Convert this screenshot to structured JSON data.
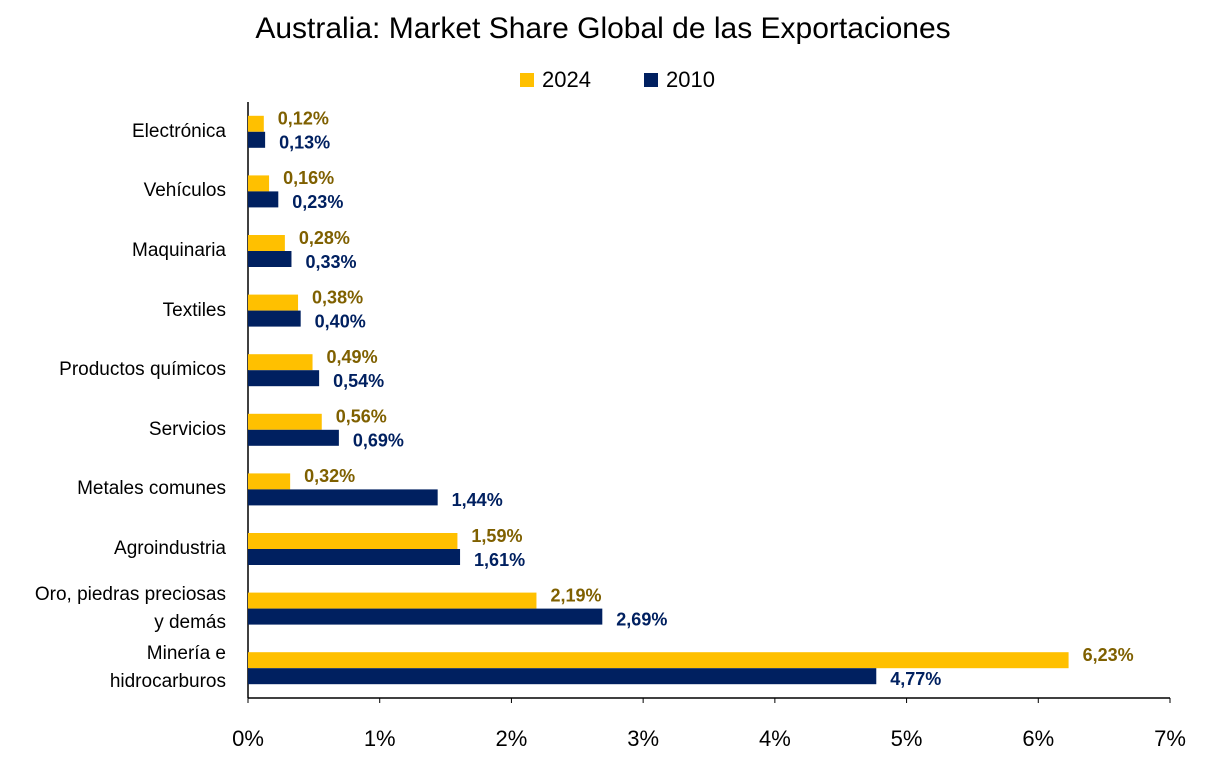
{
  "chart_data": {
    "type": "hbar",
    "title": "Australia: Market Share Global de las Exportaciones",
    "categories": [
      "Electrónica",
      "Vehículos",
      "Maquinaria",
      "Textiles",
      "Productos químicos",
      "Servicios",
      "Metales comunes",
      "Agroindustria",
      "Oro, piedras preciosas\ny demás",
      "Minería e\nhidrocarburos"
    ],
    "series": [
      {
        "name": "2024",
        "color": "#ffc000",
        "label_color": "#7f6000",
        "values": [
          0.12,
          0.16,
          0.28,
          0.38,
          0.49,
          0.56,
          0.32,
          1.59,
          2.19,
          6.23
        ],
        "value_labels": [
          "0,12%",
          "0,16%",
          "0,28%",
          "0,38%",
          "0,49%",
          "0,56%",
          "0,32%",
          "1,59%",
          "2,19%",
          "6,23%"
        ]
      },
      {
        "name": "2010",
        "color": "#002060",
        "label_color": "#002060",
        "values": [
          0.13,
          0.23,
          0.33,
          0.4,
          0.54,
          0.69,
          1.44,
          1.61,
          2.69,
          4.77
        ],
        "value_labels": [
          "0,13%",
          "0,23%",
          "0,33%",
          "0,40%",
          "0,54%",
          "0,69%",
          "1,44%",
          "1,61%",
          "2,69%",
          "4,77%"
        ]
      }
    ],
    "xlim": [
      0,
      7
    ],
    "xticks": [
      {
        "value": 0,
        "label": "0%"
      },
      {
        "value": 1,
        "label": "1%"
      },
      {
        "value": 2,
        "label": "2%"
      },
      {
        "value": 3,
        "label": "3%"
      },
      {
        "value": 4,
        "label": "4%"
      },
      {
        "value": 5,
        "label": "5%"
      },
      {
        "value": 6,
        "label": "6%"
      },
      {
        "value": 7,
        "label": "7%"
      }
    ],
    "legend": "top",
    "grid": false
  }
}
